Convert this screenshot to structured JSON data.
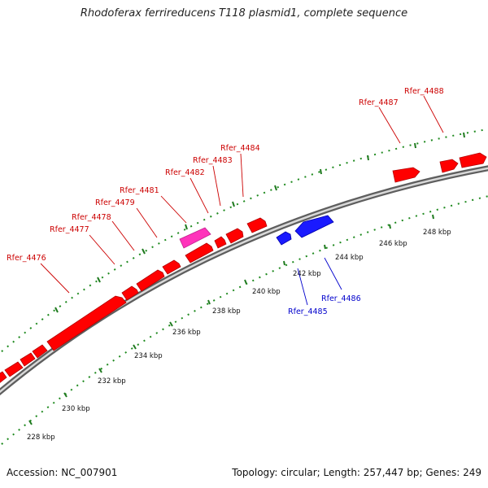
{
  "title": "Rhodoferax ferrireducens T118 plasmid1, complete sequence",
  "footer": {
    "accession": "Accession: NC_007901",
    "summary": "Topology: circular; Length: 257,447 bp; Genes: 249"
  },
  "colors": {
    "forward_gene": "#ff0000",
    "reverse_gene": "#0000ff",
    "rna_gene": "#ff33bb",
    "backbone": "#8a8a8a",
    "tick": "#1f7a1f",
    "forward_label": "#cc0000",
    "reverse_label": "#0000cc"
  },
  "scale_labels": [
    "228 kbp",
    "230 kbp",
    "232 kbp",
    "234 kbp",
    "236 kbp",
    "238 kbp",
    "240 kbp",
    "242 kbp",
    "244 kbp",
    "246 kbp",
    "248 kbp"
  ],
  "gene_labels": {
    "forward": [
      "Rfer_4476",
      "Rfer_4477",
      "Rfer_4478",
      "Rfer_4479",
      "Rfer_4481",
      "Rfer_4482",
      "Rfer_4483",
      "Rfer_4484",
      "Rfer_4487",
      "Rfer_4488"
    ],
    "reverse": [
      "Rfer_4485",
      "Rfer_4486"
    ]
  }
}
